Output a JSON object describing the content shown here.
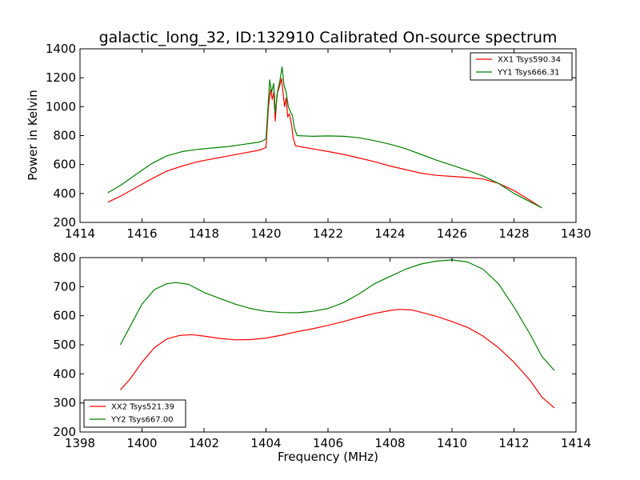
{
  "chart_data": [
    {
      "type": "line",
      "title": "galactic_long_32, ID:132910 Calibrated On-source spectrum",
      "xlabel": "",
      "ylabel": "Power in Kelvin",
      "xlim": [
        1414,
        1430
      ],
      "ylim": [
        200,
        1400
      ],
      "xticks": [
        "1414",
        "1416",
        "1418",
        "1420",
        "1422",
        "1424",
        "1426",
        "1428",
        "1430"
      ],
      "yticks": [
        "200",
        "400",
        "600",
        "800",
        "1000",
        "1200",
        "1400"
      ],
      "grid": false,
      "legend": "top-right",
      "series": [
        {
          "name": "XX1 Tsys590.34",
          "color": "#ff0000",
          "points": [
            [
              1414.9,
              340
            ],
            [
              1415.3,
              380
            ],
            [
              1415.8,
              440
            ],
            [
              1416.3,
              500
            ],
            [
              1416.8,
              555
            ],
            [
              1417.3,
              590
            ],
            [
              1417.8,
              620
            ],
            [
              1418.3,
              640
            ],
            [
              1418.8,
              660
            ],
            [
              1419.3,
              680
            ],
            [
              1419.8,
              700
            ],
            [
              1420.0,
              718
            ],
            [
              1420.08,
              1000
            ],
            [
              1420.15,
              1120
            ],
            [
              1420.2,
              1050
            ],
            [
              1420.25,
              1100
            ],
            [
              1420.3,
              900
            ],
            [
              1420.35,
              1080
            ],
            [
              1420.45,
              1150
            ],
            [
              1420.5,
              1195
            ],
            [
              1420.55,
              1100
            ],
            [
              1420.6,
              1000
            ],
            [
              1420.65,
              1060
            ],
            [
              1420.7,
              930
            ],
            [
              1420.75,
              950
            ],
            [
              1420.82,
              880
            ],
            [
              1420.88,
              780
            ],
            [
              1420.95,
              730
            ],
            [
              1421.2,
              720
            ],
            [
              1421.6,
              705
            ],
            [
              1422.0,
              690
            ],
            [
              1422.5,
              670
            ],
            [
              1423.0,
              645
            ],
            [
              1423.5,
              620
            ],
            [
              1424.0,
              590
            ],
            [
              1424.5,
              565
            ],
            [
              1425.0,
              540
            ],
            [
              1425.5,
              525
            ],
            [
              1426.0,
              518
            ],
            [
              1426.5,
              510
            ],
            [
              1427.0,
              500
            ],
            [
              1427.5,
              470
            ],
            [
              1428.0,
              420
            ],
            [
              1428.5,
              355
            ],
            [
              1428.9,
              300
            ]
          ]
        },
        {
          "name": "YY1 Tsys666.31",
          "color": "#008000",
          "points": [
            [
              1414.9,
              405
            ],
            [
              1415.3,
              455
            ],
            [
              1415.8,
              530
            ],
            [
              1416.3,
              605
            ],
            [
              1416.8,
              660
            ],
            [
              1417.3,
              690
            ],
            [
              1417.8,
              705
            ],
            [
              1418.3,
              715
            ],
            [
              1418.8,
              725
            ],
            [
              1419.3,
              740
            ],
            [
              1419.8,
              755
            ],
            [
              1420.0,
              775
            ],
            [
              1420.08,
              1050
            ],
            [
              1420.12,
              1185
            ],
            [
              1420.18,
              1100
            ],
            [
              1420.25,
              1160
            ],
            [
              1420.3,
              960
            ],
            [
              1420.38,
              1110
            ],
            [
              1420.45,
              1180
            ],
            [
              1420.52,
              1275
            ],
            [
              1420.58,
              1150
            ],
            [
              1420.65,
              1100
            ],
            [
              1420.72,
              1000
            ],
            [
              1420.8,
              960
            ],
            [
              1420.85,
              940
            ],
            [
              1420.92,
              850
            ],
            [
              1421.0,
              800
            ],
            [
              1421.5,
              795
            ],
            [
              1422.0,
              798
            ],
            [
              1422.5,
              795
            ],
            [
              1423.0,
              785
            ],
            [
              1423.5,
              765
            ],
            [
              1424.0,
              740
            ],
            [
              1424.5,
              710
            ],
            [
              1425.0,
              670
            ],
            [
              1425.5,
              630
            ],
            [
              1426.0,
              595
            ],
            [
              1426.5,
              560
            ],
            [
              1427.0,
              520
            ],
            [
              1427.5,
              470
            ],
            [
              1428.0,
              400
            ],
            [
              1428.5,
              345
            ],
            [
              1428.9,
              300
            ]
          ]
        }
      ]
    },
    {
      "type": "line",
      "title": "",
      "xlabel": "Frequency (MHz)",
      "ylabel": "",
      "xlim": [
        1398,
        1414
      ],
      "ylim": [
        200,
        800
      ],
      "xticks": [
        "1398",
        "1400",
        "1402",
        "1404",
        "1406",
        "1408",
        "1410",
        "1412",
        "1414"
      ],
      "yticks": [
        "200",
        "300",
        "400",
        "500",
        "600",
        "700",
        "800"
      ],
      "grid": false,
      "legend": "bottom-left",
      "series": [
        {
          "name": "XX2 Tsys521.39",
          "color": "#ff0000",
          "points": [
            [
              1399.3,
              345
            ],
            [
              1399.6,
              380
            ],
            [
              1400.0,
              440
            ],
            [
              1400.4,
              490
            ],
            [
              1400.8,
              520
            ],
            [
              1401.2,
              532
            ],
            [
              1401.6,
              535
            ],
            [
              1402.0,
              530
            ],
            [
              1402.5,
              522
            ],
            [
              1403.0,
              517
            ],
            [
              1403.5,
              518
            ],
            [
              1404.0,
              523
            ],
            [
              1404.5,
              533
            ],
            [
              1405.0,
              545
            ],
            [
              1405.5,
              555
            ],
            [
              1406.0,
              567
            ],
            [
              1406.5,
              580
            ],
            [
              1407.0,
              595
            ],
            [
              1407.5,
              608
            ],
            [
              1408.0,
              618
            ],
            [
              1408.3,
              622
            ],
            [
              1408.7,
              620
            ],
            [
              1409.0,
              612
            ],
            [
              1409.5,
              598
            ],
            [
              1410.0,
              580
            ],
            [
              1410.5,
              560
            ],
            [
              1411.0,
              530
            ],
            [
              1411.5,
              490
            ],
            [
              1412.0,
              440
            ],
            [
              1412.5,
              380
            ],
            [
              1412.9,
              320
            ],
            [
              1413.3,
              283
            ]
          ]
        },
        {
          "name": "YY2 Tsys667.00",
          "color": "#008000",
          "points": [
            [
              1399.3,
              500
            ],
            [
              1399.6,
              560
            ],
            [
              1400.0,
              640
            ],
            [
              1400.4,
              690
            ],
            [
              1400.8,
              710
            ],
            [
              1401.1,
              714
            ],
            [
              1401.5,
              708
            ],
            [
              1402.0,
              680
            ],
            [
              1402.5,
              660
            ],
            [
              1403.0,
              640
            ],
            [
              1403.5,
              625
            ],
            [
              1404.0,
              615
            ],
            [
              1404.5,
              611
            ],
            [
              1405.0,
              610
            ],
            [
              1405.5,
              615
            ],
            [
              1406.0,
              625
            ],
            [
              1406.5,
              645
            ],
            [
              1407.0,
              675
            ],
            [
              1407.5,
              710
            ],
            [
              1408.0,
              735
            ],
            [
              1408.5,
              760
            ],
            [
              1409.0,
              778
            ],
            [
              1409.5,
              788
            ],
            [
              1410.0,
              792
            ],
            [
              1410.5,
              785
            ],
            [
              1411.0,
              760
            ],
            [
              1411.5,
              710
            ],
            [
              1412.0,
              630
            ],
            [
              1412.5,
              540
            ],
            [
              1412.9,
              460
            ],
            [
              1413.3,
              412
            ]
          ]
        }
      ]
    }
  ]
}
